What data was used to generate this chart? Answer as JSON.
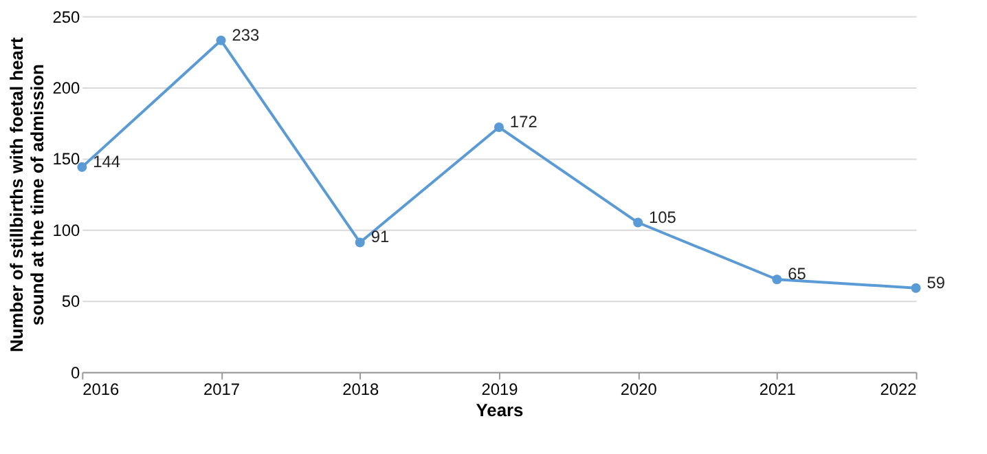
{
  "chart_data": {
    "type": "line",
    "xlabel": "Years",
    "ylabel": "Number of stillbirths with foetal heart sound at the time of admission",
    "x": [
      2016,
      2017,
      2018,
      2019,
      2020,
      2021,
      2022
    ],
    "series": [
      {
        "color": "#5b9bd5",
        "values": [
          144,
          233,
          91,
          172,
          105,
          65,
          59
        ]
      }
    ],
    "xlim": [
      2016,
      2022
    ],
    "xticks": [
      2016,
      2017,
      2018,
      2019,
      2020,
      2021,
      2022
    ],
    "ylim": [
      0,
      250
    ],
    "yticks": [
      0,
      50,
      100,
      150,
      200,
      250
    ],
    "grid": "y",
    "marker": "circle",
    "data_labels": true
  }
}
